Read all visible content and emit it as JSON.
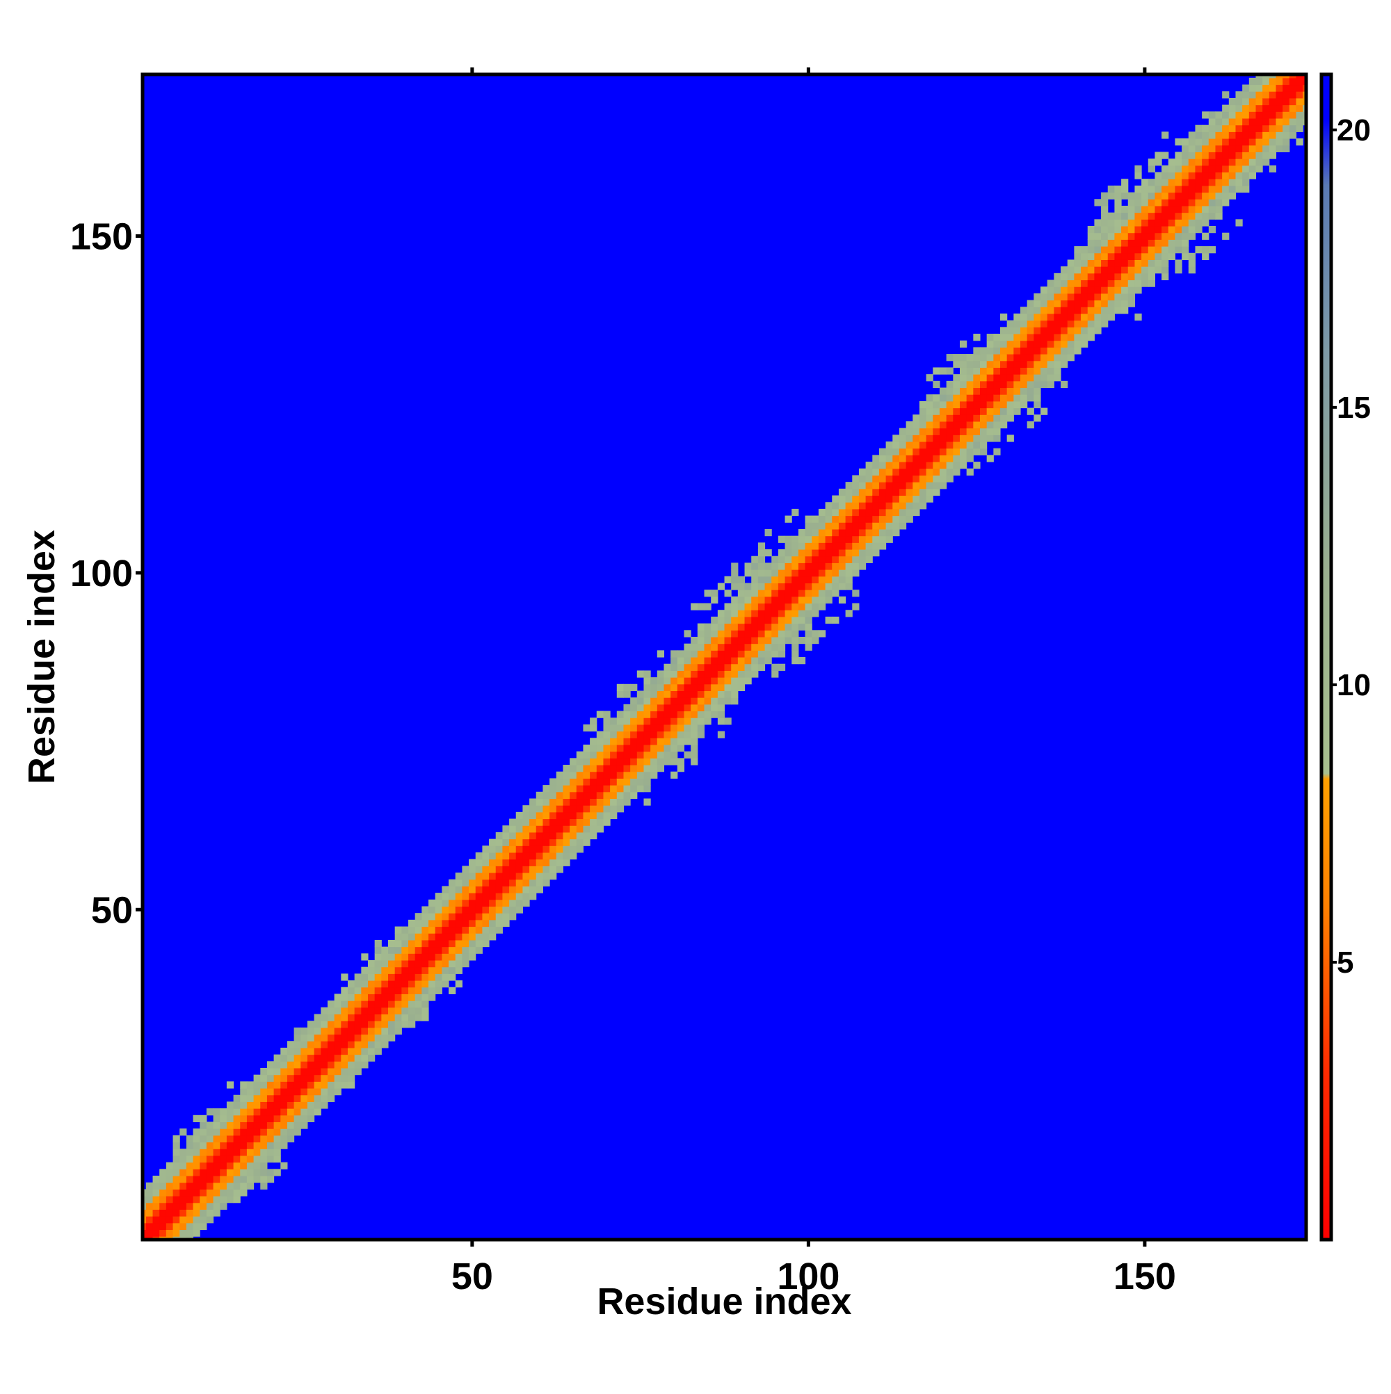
{
  "chart_data": {
    "type": "heatmap",
    "title": "",
    "xlabel": "Residue index",
    "ylabel": "Residue index",
    "xlim": [
      1,
      174
    ],
    "ylim": [
      1,
      174
    ],
    "x_ticks": [
      50,
      100,
      150
    ],
    "y_ticks": [
      50,
      100,
      150
    ],
    "n_residues": 174,
    "colorbar": {
      "range": [
        0,
        21
      ],
      "ticks": [
        5,
        10,
        15,
        20
      ],
      "stops": [
        {
          "value": 0,
          "color": "#ff0000"
        },
        {
          "value": 3,
          "color": "#ff2a00"
        },
        {
          "value": 6,
          "color": "#ff8000"
        },
        {
          "value": 8.3,
          "color": "#ffa000"
        },
        {
          "value": 8.4,
          "color": "#a8c08f"
        },
        {
          "value": 12,
          "color": "#9aaf8f"
        },
        {
          "value": 16,
          "color": "#7e9aa6"
        },
        {
          "value": 19,
          "color": "#5a7ab4"
        },
        {
          "value": 20.2,
          "color": "#0000ff"
        },
        {
          "value": 21,
          "color": "#0000ff"
        }
      ]
    },
    "background_color": "#0000ff",
    "contact_regions": [
      {
        "center": 14,
        "half_width": 7,
        "level": "green"
      },
      {
        "center": 30,
        "half_width": 5,
        "level": "green"
      },
      {
        "center": 40,
        "half_width": 6,
        "level": "green"
      },
      {
        "center": 78,
        "half_width": 8,
        "level": "green"
      },
      {
        "center": 95,
        "half_width": 9,
        "level": "green"
      },
      {
        "center": 127,
        "half_width": 8,
        "level": "green"
      },
      {
        "center": 152,
        "half_width": 9,
        "level": "green"
      },
      {
        "center": 165,
        "half_width": 6,
        "level": "green"
      }
    ],
    "grid": false,
    "legend": "colorbar-right"
  }
}
